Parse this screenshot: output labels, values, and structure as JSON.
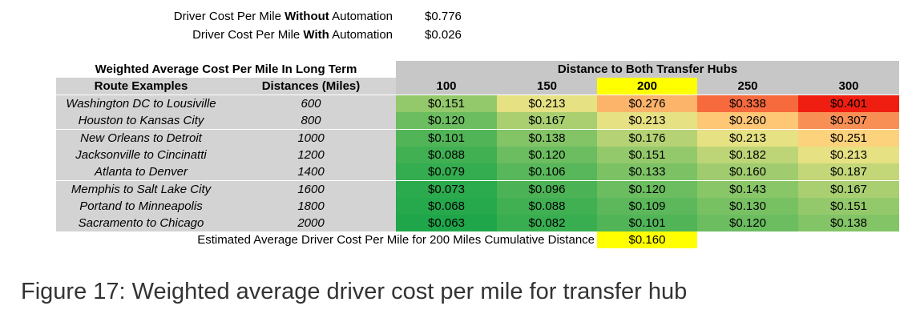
{
  "summary": {
    "without_label_pre": "Driver Cost Per Mile ",
    "without_label_bold": "Without",
    "without_label_post": " Automation",
    "without_value": "$0.776",
    "with_label_pre": "Driver Cost Per Mile ",
    "with_label_bold": "With",
    "with_label_post": " Automation",
    "with_value": "$0.026"
  },
  "table": {
    "left_title": "Weighted Average Cost Per Mile In Long Term",
    "right_title": "Distance to Both Transfer Hubs",
    "col_route": "Route Examples",
    "col_distance": "Distances (Miles)",
    "hub_distances": [
      "100",
      "150",
      "200",
      "250",
      "300"
    ],
    "highlight_column": "200",
    "rows": [
      {
        "route": "Washington DC to Lousiville",
        "distance": "600",
        "values": [
          "$0.151",
          "$0.213",
          "$0.276",
          "$0.338",
          "$0.401"
        ]
      },
      {
        "route": "Houston to Kansas City",
        "distance": "800",
        "values": [
          "$0.120",
          "$0.167",
          "$0.213",
          "$0.260",
          "$0.307"
        ]
      },
      {
        "route": "New Orleans to Detroit",
        "distance": "1000",
        "values": [
          "$0.101",
          "$0.138",
          "$0.176",
          "$0.213",
          "$0.251"
        ]
      },
      {
        "route": "Jacksonville to Cincinatti",
        "distance": "1200",
        "values": [
          "$0.088",
          "$0.120",
          "$0.151",
          "$0.182",
          "$0.213"
        ]
      },
      {
        "route": "Atlanta to Denver",
        "distance": "1400",
        "values": [
          "$0.079",
          "$0.106",
          "$0.133",
          "$0.160",
          "$0.187"
        ]
      },
      {
        "route": "Memphis to Salt Lake City",
        "distance": "1600",
        "values": [
          "$0.073",
          "$0.096",
          "$0.120",
          "$0.143",
          "$0.167"
        ]
      },
      {
        "route": "Portand to Minneapolis",
        "distance": "1800",
        "values": [
          "$0.068",
          "$0.088",
          "$0.109",
          "$0.130",
          "$0.151"
        ]
      },
      {
        "route": "Sacramento to Chicago",
        "distance": "2000",
        "values": [
          "$0.063",
          "$0.082",
          "$0.101",
          "$0.120",
          "$0.138"
        ]
      }
    ],
    "footer_label": "Estimated Average Driver Cost Per Mile for 200 Miles Cumulative Distance",
    "footer_value": "$0.160"
  },
  "colors": {
    "header_grey": "#c7c7c7",
    "row_grey": "#d3d3d3",
    "highlight_yellow": "#ffff00",
    "scale_low": "#1fa64a",
    "scale_mid": "#ffe98a",
    "scale_high": "#f01e10"
  },
  "caption": "Figure 17: Weighted average driver cost per mile for transfer hub"
}
